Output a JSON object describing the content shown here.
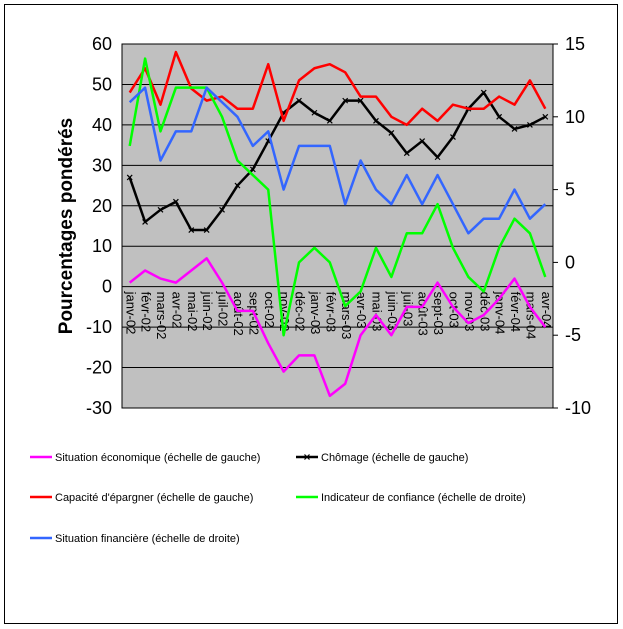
{
  "chart_data": {
    "type": "line",
    "ylabel": "Pourcentages pondérés",
    "y_left": {
      "min": -30,
      "max": 60,
      "ticks": [
        "60",
        "50",
        "40",
        "30",
        "20",
        "10",
        "0",
        "-10",
        "-20",
        "-30"
      ]
    },
    "y_right": {
      "min": -10,
      "max": 15,
      "ticks": [
        "15",
        "10",
        "5",
        "0",
        "-5",
        "-10"
      ]
    },
    "categories": [
      "janv-02",
      "févr-02",
      "mars-02",
      "avr-02",
      "mai-02",
      "juin-02",
      "juil-02",
      "août-02",
      "sept-02",
      "oct-02",
      "nov-02",
      "déc-02",
      "janv-03",
      "févr-03",
      "mars-03",
      "avr-03",
      "mai-03",
      "juin-03",
      "juil-03",
      "août-03",
      "sept-03",
      "oct-03",
      "nov-03",
      "déc-03",
      "janv-04",
      "févr-04",
      "mars-04",
      "avr-04"
    ],
    "x_labels": [
      "janv-02",
      "févr-02",
      "mars-02",
      "avr-02",
      "mai-02",
      "juin-02",
      "juil-02",
      "août-02",
      "sept-02",
      "oct-02",
      "nov-02",
      "déc-02",
      "janv-03",
      "févr-03",
      "mars-03",
      "avr-03",
      "mai-03",
      "juin-03",
      "juil-03",
      "août-03",
      "sept-03",
      "oct-03",
      "nov-03",
      "déc-03",
      "janv-04",
      "févr-04",
      "mars-04",
      "avr-04"
    ],
    "grid": true,
    "plot_background": "#c0c0c0",
    "series": [
      {
        "name": "Situation économique (échelle de gauche)",
        "axis": "left",
        "color": "#ff00ff",
        "marker": "none",
        "values": [
          1,
          4,
          2,
          1,
          4,
          7,
          1,
          -6,
          -6,
          -14,
          -21,
          -17,
          -17,
          -27,
          -24,
          -12,
          -7,
          -12,
          -5,
          -5,
          1,
          -5,
          -9,
          -7,
          -3,
          2,
          -5,
          -10
        ]
      },
      {
        "name": "Chômage (échelle de gauche)",
        "axis": "left",
        "color": "#000000",
        "marker": "cross",
        "values": [
          27,
          16,
          19,
          21,
          14,
          14,
          19,
          25,
          29,
          36,
          43,
          46,
          43,
          41,
          46,
          46,
          41,
          38,
          33,
          36,
          32,
          37,
          44,
          48,
          42,
          39,
          40,
          42
        ]
      },
      {
        "name": "Capacité d'épargner (échelle de gauche)",
        "axis": "left",
        "color": "#ff0000",
        "marker": "none",
        "values": [
          48,
          54,
          45,
          58,
          49,
          46,
          47,
          44,
          44,
          55,
          41,
          51,
          54,
          55,
          53,
          47,
          47,
          42,
          40,
          44,
          41,
          45,
          44,
          44,
          47,
          45,
          51,
          44
        ]
      },
      {
        "name": "Indicateur de confiance (échelle de droite)",
        "axis": "right",
        "color": "#00ff00",
        "marker": "none",
        "values": [
          8,
          14,
          9,
          12,
          12,
          12,
          10,
          7,
          6,
          5,
          -5,
          0,
          1,
          0,
          -3,
          -2,
          1,
          -1,
          2,
          2,
          4,
          1,
          -1,
          -2,
          1,
          3,
          2,
          -1
        ]
      },
      {
        "name": "Situation financière (échelle de droite)",
        "axis": "right",
        "color": "#3366ff",
        "marker": "none",
        "values": [
          11,
          12,
          7,
          9,
          9,
          12,
          11,
          10,
          8,
          9,
          5,
          8,
          8,
          8,
          4,
          7,
          5,
          4,
          6,
          4,
          6,
          4,
          2,
          3,
          3,
          5,
          3,
          4
        ]
      }
    ]
  }
}
